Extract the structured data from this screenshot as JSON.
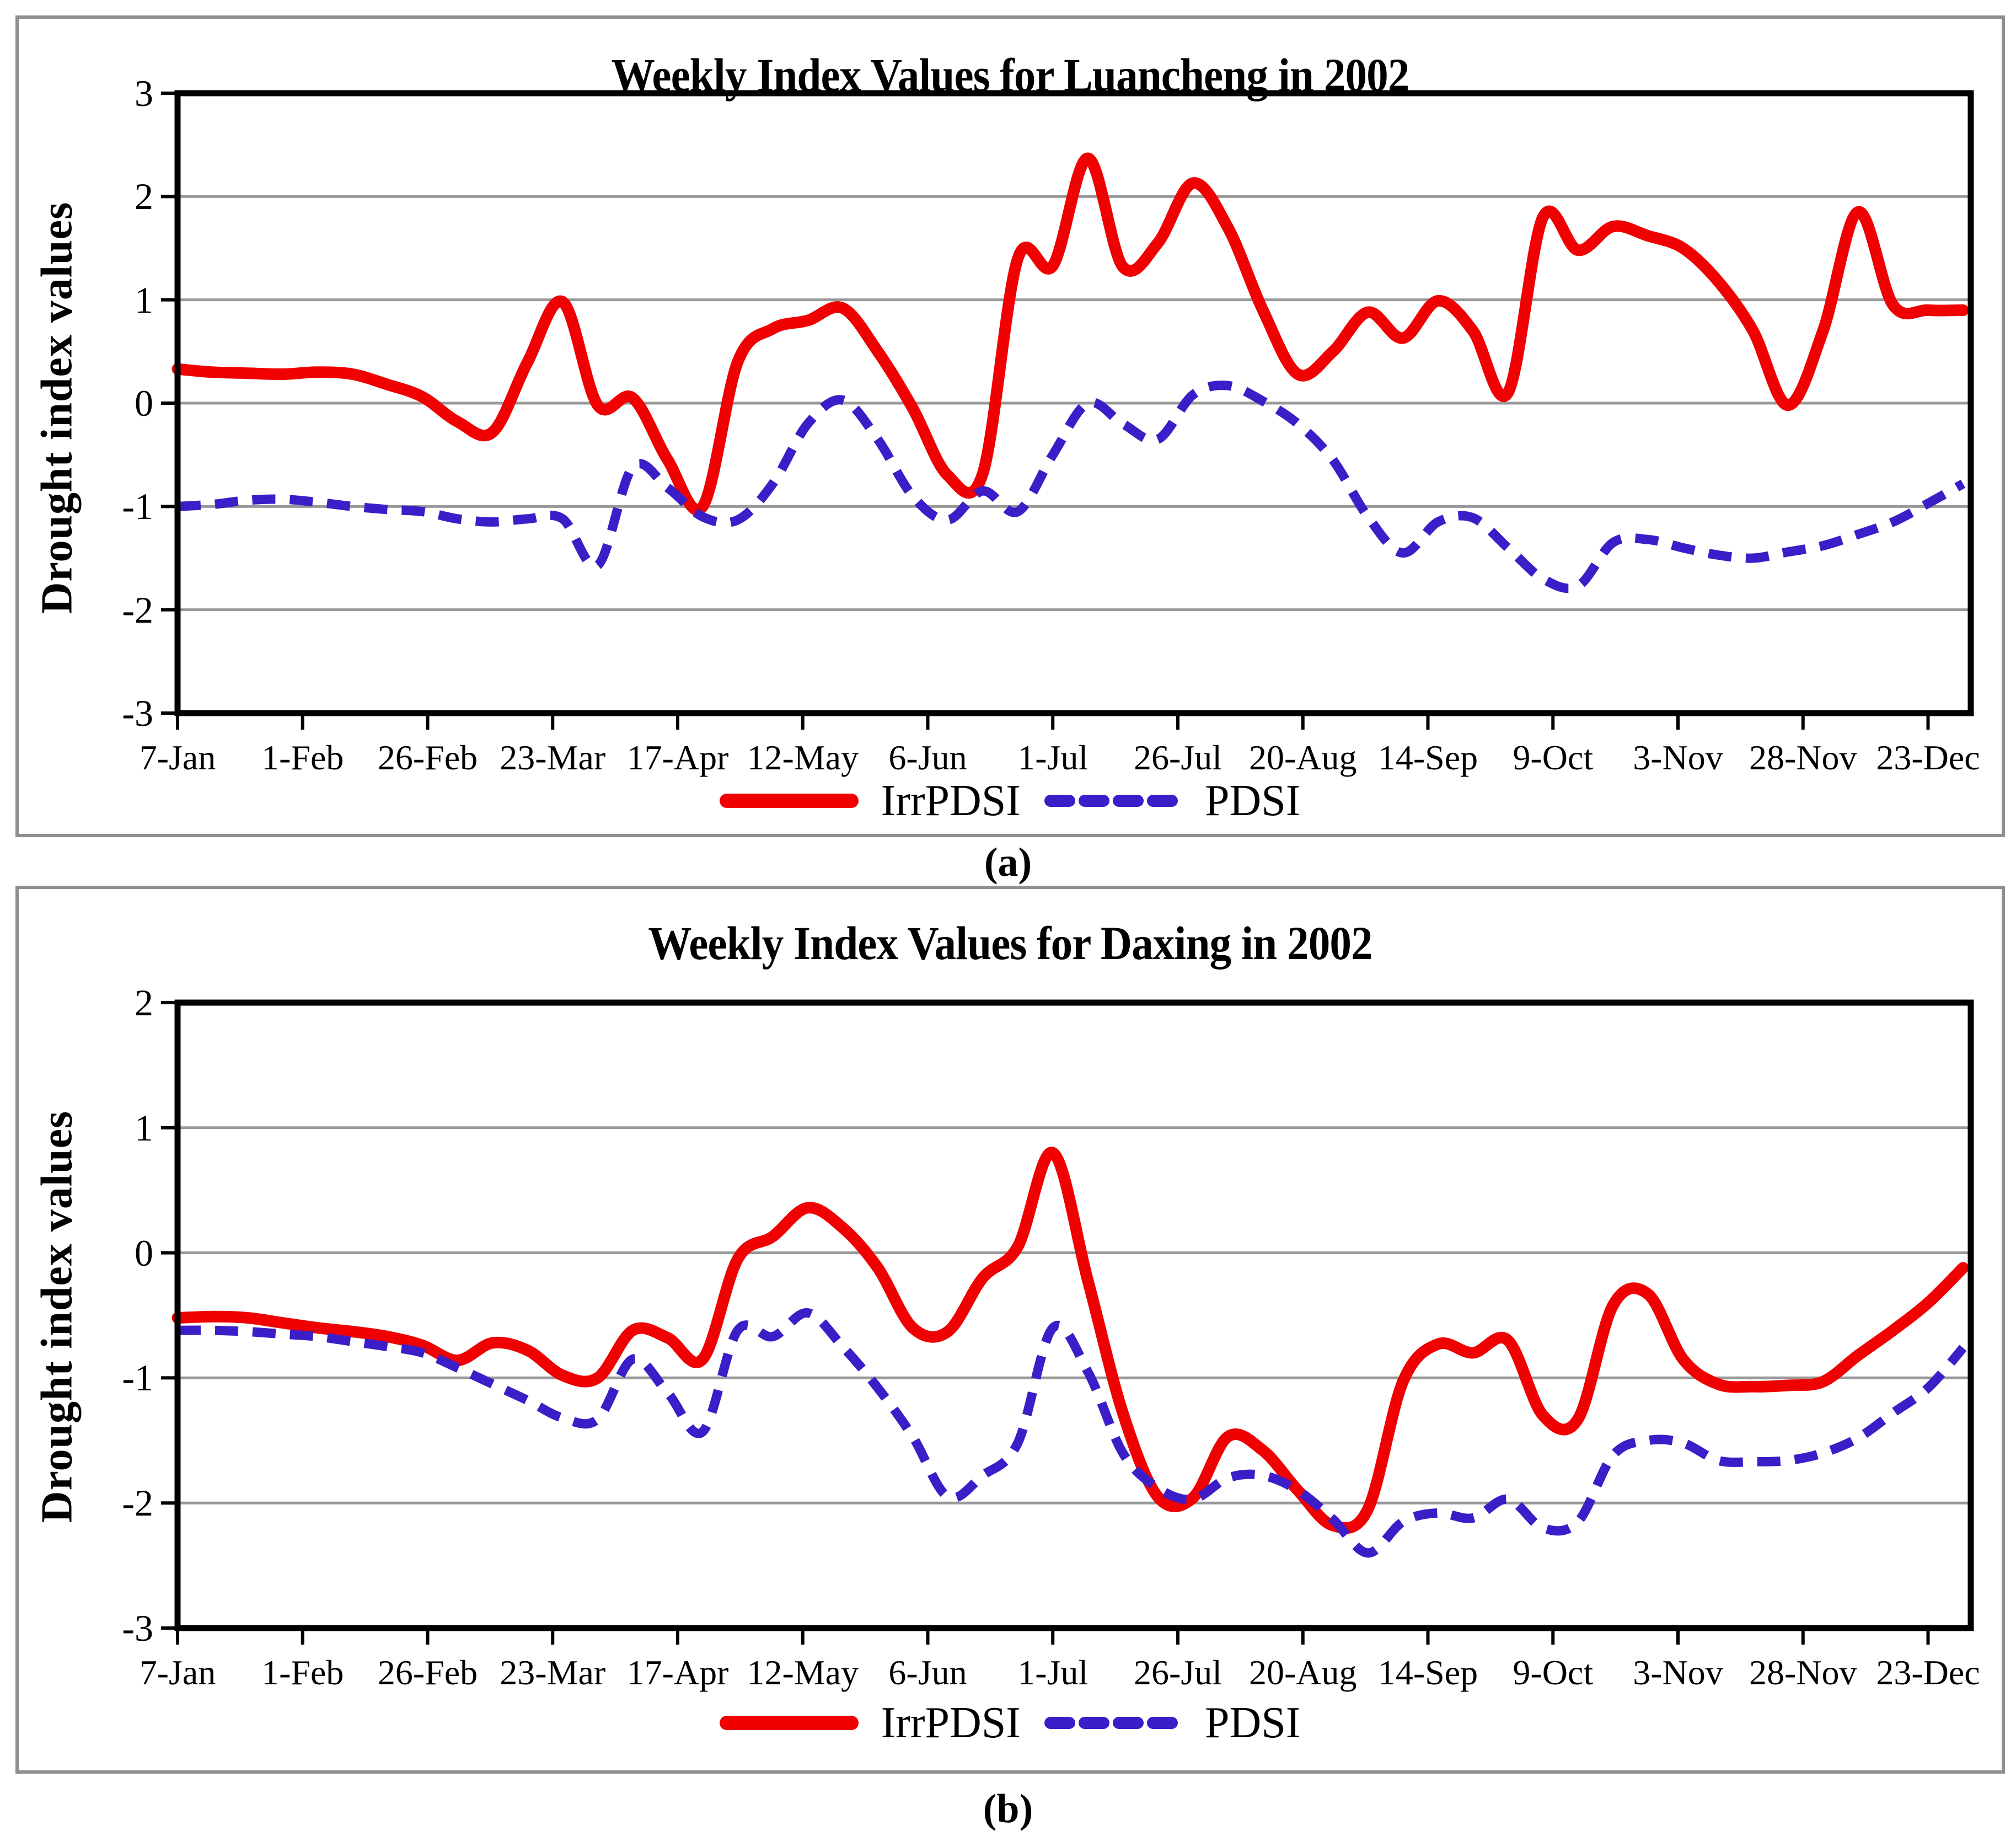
{
  "page": {
    "background": "#FFFFFF"
  },
  "legend": {
    "items": [
      {
        "label": "IrrPDSI",
        "color": "#F00000",
        "style": "solid"
      },
      {
        "label": "PDSI",
        "color": "#3B1EC8",
        "style": "dashed"
      }
    ]
  },
  "panels": [
    {
      "caption": "(a)",
      "title": "Weekly Index Values for Luancheng in 2002",
      "y_axis_label": "Drought index values"
    },
    {
      "caption": "(b)",
      "title": "Weekly Index Values for Daxing in 2002",
      "y_axis_label": "Drought index values"
    }
  ],
  "chart_data": [
    {
      "type": "line",
      "title": "Weekly Index Values for Luancheng in 2002",
      "xlabel": "",
      "ylabel": "Drought index values",
      "x_tick_labels": [
        "7-Jan",
        "1-Feb",
        "26-Feb",
        "23-Mar",
        "17-Apr",
        "12-May",
        "6-Jun",
        "1-Jul",
        "26-Jul",
        "20-Aug",
        "14-Sep",
        "9-Oct",
        "3-Nov",
        "28-Nov",
        "23-Dec"
      ],
      "x_tick_interval_days": 25,
      "points_per_series": 52,
      "point_interval_days": 7,
      "ylim": [
        -3,
        3
      ],
      "yticks": [
        3,
        2,
        1,
        0,
        -1,
        -2,
        -3
      ],
      "grid": true,
      "legend_position": "bottom",
      "series": [
        {
          "name": "IrrPDSI",
          "color": "#F00000",
          "dash": false,
          "values": [
            0.33,
            0.3,
            0.29,
            0.28,
            0.3,
            0.28,
            0.18,
            0.06,
            -0.18,
            -0.28,
            0.4,
            0.98,
            -0.02,
            0.05,
            -0.55,
            -1.0,
            0.4,
            0.72,
            0.8,
            0.92,
            0.5,
            -0.05,
            -0.7,
            -0.68,
            1.4,
            1.33,
            2.37,
            1.32,
            1.55,
            2.13,
            1.7,
            0.9,
            0.28,
            0.5,
            0.88,
            0.63,
            0.99,
            0.7,
            0.1,
            1.8,
            1.48,
            1.71,
            1.62,
            1.5,
            1.18,
            0.7,
            -0.02,
            0.7,
            1.85,
            0.95,
            0.9,
            0.9
          ]
        },
        {
          "name": "PDSI",
          "color": "#3B1EC8",
          "dash": true,
          "values": [
            -1.0,
            -0.98,
            -0.94,
            -0.93,
            -0.96,
            -1.0,
            -1.03,
            -1.05,
            -1.12,
            -1.15,
            -1.12,
            -1.12,
            -1.57,
            -0.62,
            -0.82,
            -1.1,
            -1.13,
            -0.78,
            -0.2,
            0.03,
            -0.35,
            -0.9,
            -1.13,
            -0.85,
            -1.05,
            -0.5,
            0.0,
            -0.2,
            -0.35,
            0.08,
            0.17,
            0.02,
            -0.2,
            -0.55,
            -1.1,
            -1.45,
            -1.15,
            -1.11,
            -1.4,
            -1.7,
            -1.77,
            -1.35,
            -1.32,
            -1.4,
            -1.47,
            -1.5,
            -1.44,
            -1.38,
            -1.27,
            -1.15,
            -0.97,
            -0.78
          ]
        }
      ]
    },
    {
      "type": "line",
      "title": "Weekly Index Values for Daxing in 2002",
      "xlabel": "",
      "ylabel": "Drought index values",
      "x_tick_labels": [
        "7-Jan",
        "1-Feb",
        "26-Feb",
        "23-Mar",
        "17-Apr",
        "12-May",
        "6-Jun",
        "1-Jul",
        "26-Jul",
        "20-Aug",
        "14-Sep",
        "9-Oct",
        "3-Nov",
        "28-Nov",
        "23-Dec"
      ],
      "x_tick_interval_days": 25,
      "points_per_series": 52,
      "point_interval_days": 7,
      "ylim": [
        -3,
        2
      ],
      "yticks": [
        2,
        1,
        0,
        -1,
        -2,
        -3
      ],
      "grid": true,
      "legend_position": "bottom",
      "series": [
        {
          "name": "IrrPDSI",
          "color": "#F00000",
          "dash": false,
          "values": [
            -0.52,
            -0.51,
            -0.52,
            -0.56,
            -0.6,
            -0.63,
            -0.67,
            -0.74,
            -0.86,
            -0.72,
            -0.78,
            -0.98,
            -1.0,
            -0.62,
            -0.68,
            -0.85,
            -0.05,
            0.13,
            0.36,
            0.2,
            -0.12,
            -0.6,
            -0.63,
            -0.2,
            0.05,
            0.8,
            -0.22,
            -1.28,
            -1.95,
            -1.96,
            -1.47,
            -1.58,
            -1.9,
            -2.18,
            -2.05,
            -1.03,
            -0.73,
            -0.8,
            -0.7,
            -1.3,
            -1.33,
            -0.42,
            -0.33,
            -0.85,
            -1.05,
            -1.07,
            -1.06,
            -1.03,
            -0.82,
            -0.62,
            -0.4,
            -0.12
          ]
        },
        {
          "name": "PDSI",
          "color": "#3B1EC8",
          "dash": true,
          "values": [
            -0.62,
            -0.62,
            -0.63,
            -0.65,
            -0.67,
            -0.71,
            -0.75,
            -0.8,
            -0.92,
            -1.05,
            -1.18,
            -1.32,
            -1.33,
            -0.85,
            -1.12,
            -1.43,
            -0.62,
            -0.67,
            -0.48,
            -0.75,
            -1.08,
            -1.47,
            -1.95,
            -1.78,
            -1.52,
            -0.6,
            -0.95,
            -1.6,
            -1.88,
            -1.97,
            -1.8,
            -1.78,
            -1.9,
            -2.13,
            -2.4,
            -2.15,
            -2.08,
            -2.12,
            -1.97,
            -2.2,
            -2.15,
            -1.62,
            -1.5,
            -1.52,
            -1.66,
            -1.67,
            -1.66,
            -1.6,
            -1.48,
            -1.28,
            -1.08,
            -0.76
          ]
        }
      ]
    }
  ]
}
